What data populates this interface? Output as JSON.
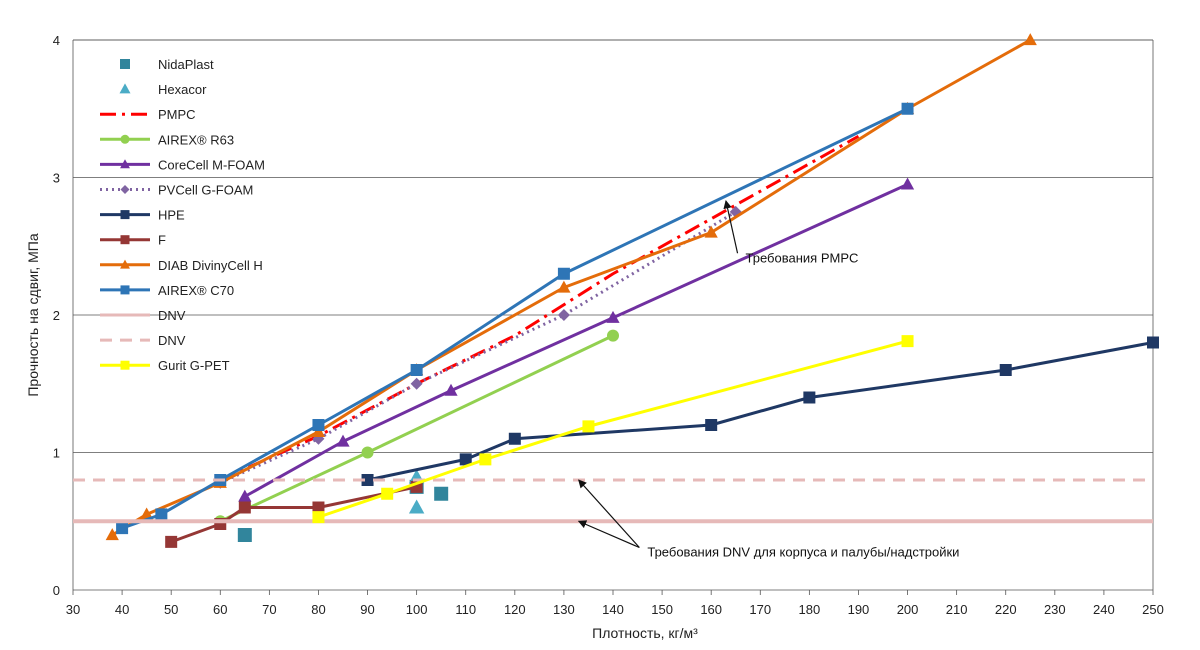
{
  "chart_data": {
    "type": "line",
    "xlabel": "Плотность, кг/м³",
    "ylabel": "Прочность на сдвиг, МПа",
    "xlim": [
      30,
      250
    ],
    "ylim": [
      0,
      4
    ],
    "xticks": [
      30,
      40,
      50,
      60,
      70,
      80,
      90,
      100,
      110,
      120,
      130,
      140,
      150,
      160,
      170,
      180,
      190,
      200,
      210,
      220,
      230,
      240,
      250
    ],
    "yticks": [
      0,
      1,
      2,
      3,
      4
    ],
    "grid": "y-major",
    "legend_position": "top-left",
    "series": [
      {
        "name": "NidaPlast",
        "style": "marker",
        "marker": "square",
        "color": "#31859c",
        "dash": "",
        "x": [
          65,
          100,
          105
        ],
        "y": [
          0.4,
          0.75,
          0.7
        ]
      },
      {
        "name": "Hexacor",
        "style": "marker",
        "marker": "triangle",
        "color": "#4bacc6",
        "dash": "",
        "x": [
          100,
          100
        ],
        "y": [
          0.6,
          0.82
        ]
      },
      {
        "name": "PMPC",
        "style": "line",
        "marker": "none",
        "color": "#ff0000",
        "dash": "16,6,3,6",
        "x": [
          60,
          80,
          100,
          120,
          140,
          160,
          190
        ],
        "y": [
          0.8,
          1.12,
          1.5,
          1.85,
          2.3,
          2.7,
          3.3
        ]
      },
      {
        "name": "AIREX® R63",
        "style": "line",
        "marker": "circle",
        "color": "#92d050",
        "dash": "",
        "x": [
          60,
          90,
          140
        ],
        "y": [
          0.5,
          1.0,
          1.85
        ]
      },
      {
        "name": "CoreCell M-FOAM",
        "style": "line",
        "marker": "triangle",
        "color": "#7030a0",
        "dash": "",
        "x": [
          65,
          85,
          107,
          140,
          200
        ],
        "y": [
          0.68,
          1.08,
          1.45,
          1.98,
          2.95
        ]
      },
      {
        "name": "PVCell G-FOAM",
        "style": "line",
        "marker": "diamond",
        "color": "#8064a2",
        "dash": "2,4",
        "x": [
          60,
          80,
          100,
          130,
          165
        ],
        "y": [
          0.78,
          1.1,
          1.5,
          2.0,
          2.75
        ]
      },
      {
        "name": "HPE",
        "style": "line",
        "marker": "square",
        "color": "#1f3864",
        "dash": "",
        "x": [
          90,
          110,
          120,
          160,
          180,
          220,
          250
        ],
        "y": [
          0.8,
          0.95,
          1.1,
          1.2,
          1.4,
          1.6,
          1.8
        ]
      },
      {
        "name": "F",
        "style": "line",
        "marker": "square",
        "color": "#953735",
        "dash": "",
        "x": [
          50,
          60,
          65,
          80,
          100
        ],
        "y": [
          0.35,
          0.48,
          0.6,
          0.6,
          0.75
        ]
      },
      {
        "name": "DIAB DivinyCell H",
        "style": "line",
        "marker": "triangle",
        "color": "#e46c0a",
        "dash": "",
        "x": [
          38,
          45,
          60,
          80,
          100,
          130,
          160,
          200,
          225
        ],
        "y": [
          0.4,
          0.55,
          0.78,
          1.15,
          1.6,
          2.2,
          2.6,
          3.5,
          4.0
        ]
      },
      {
        "name": "AIREX® C70",
        "style": "line",
        "marker": "square",
        "color": "#2e75b6",
        "dash": "",
        "x": [
          40,
          48,
          60,
          80,
          100,
          130,
          200
        ],
        "y": [
          0.45,
          0.55,
          0.8,
          1.2,
          1.6,
          2.3,
          3.5
        ]
      },
      {
        "name": "DNV",
        "style": "hline",
        "marker": "none",
        "color": "#e6b9b8",
        "dash": "",
        "x": [
          30,
          250
        ],
        "y": [
          0.5,
          0.5
        ]
      },
      {
        "name": "DNV",
        "style": "hline",
        "marker": "none",
        "color": "#e6b9b8",
        "dash": "12,8",
        "x": [
          30,
          250
        ],
        "y": [
          0.8,
          0.8
        ]
      },
      {
        "name": "Gurit G-PET",
        "style": "line",
        "marker": "square",
        "color": "#ffff00",
        "dash": "",
        "x": [
          80,
          94,
          114,
          135,
          200
        ],
        "y": [
          0.53,
          0.7,
          0.95,
          1.19,
          1.81
        ]
      }
    ],
    "annotations": [
      {
        "id": "pmpc",
        "text": "Требования PMPC",
        "anchor": {
          "x": 167,
          "y": 2.42
        },
        "arrows_to": [
          {
            "x": 163,
            "y": 2.83
          }
        ]
      },
      {
        "id": "dnv",
        "text": "Требования DNV для корпуса и палубы/надстройки",
        "anchor": {
          "x": 147,
          "y": 0.28
        },
        "arrows_to": [
          {
            "x": 133,
            "y": 0.8
          },
          {
            "x": 133,
            "y": 0.5
          }
        ]
      }
    ]
  }
}
